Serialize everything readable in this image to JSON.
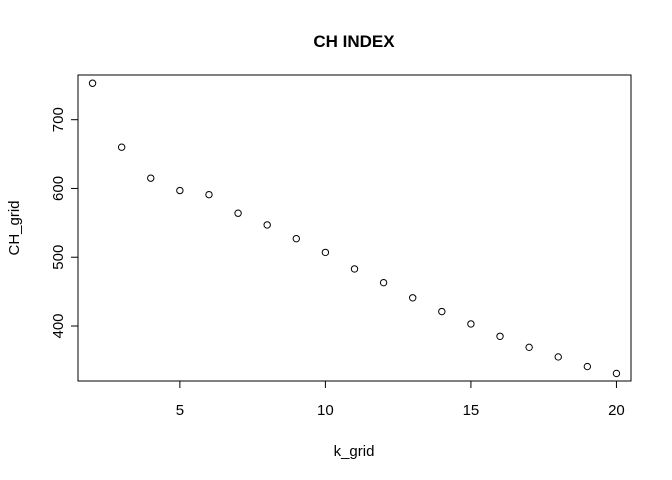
{
  "chart_data": {
    "type": "scatter",
    "title": "CH INDEX",
    "xlabel": "k_grid",
    "ylabel": "CH_grid",
    "xlim": [
      1.5,
      20.5
    ],
    "ylim": [
      320,
      765
    ],
    "x_ticks": [
      "5",
      "10",
      "15",
      "20"
    ],
    "y_ticks": [
      "400",
      "500",
      "600",
      "700"
    ],
    "grid": false,
    "marker": "open-circle",
    "x": [
      2,
      3,
      4,
      5,
      6,
      7,
      8,
      9,
      10,
      11,
      12,
      13,
      14,
      15,
      16,
      17,
      18,
      19,
      20
    ],
    "y": [
      753,
      660,
      615,
      597,
      591,
      564,
      547,
      527,
      507,
      483,
      463,
      441,
      421,
      403,
      385,
      369,
      355,
      341,
      331
    ]
  }
}
